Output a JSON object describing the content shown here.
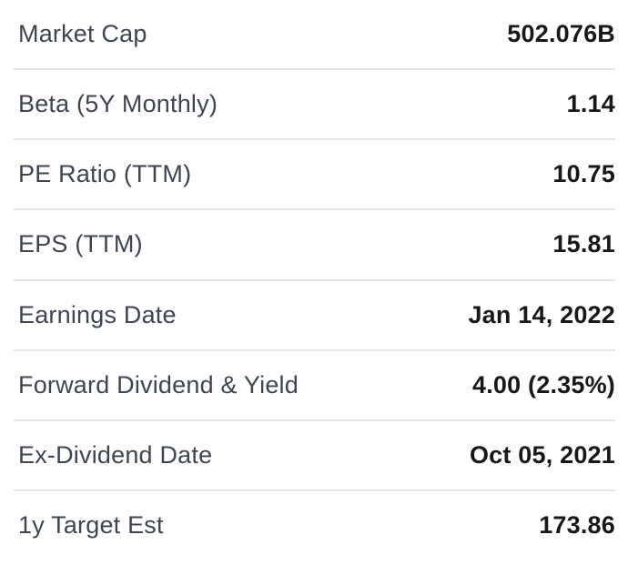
{
  "table": {
    "name": "quote-summary-statistics",
    "rows": [
      {
        "label": "Market Cap",
        "value": "502.076B"
      },
      {
        "label": "Beta (5Y Monthly)",
        "value": "1.14"
      },
      {
        "label": "PE Ratio (TTM)",
        "value": "10.75"
      },
      {
        "label": "EPS (TTM)",
        "value": "15.81"
      },
      {
        "label": "Earnings Date",
        "value": "Jan 14, 2022"
      },
      {
        "label": "Forward Dividend & Yield",
        "value": "4.00 (2.35%)"
      },
      {
        "label": "Ex-Dividend Date",
        "value": "Oct 05, 2021"
      },
      {
        "label": "1y Target Est",
        "value": "173.86"
      }
    ],
    "colors": {
      "label": "#3f4550",
      "value": "#16181a",
      "divider": "#e6e6e6",
      "background": "#ffffff"
    }
  }
}
